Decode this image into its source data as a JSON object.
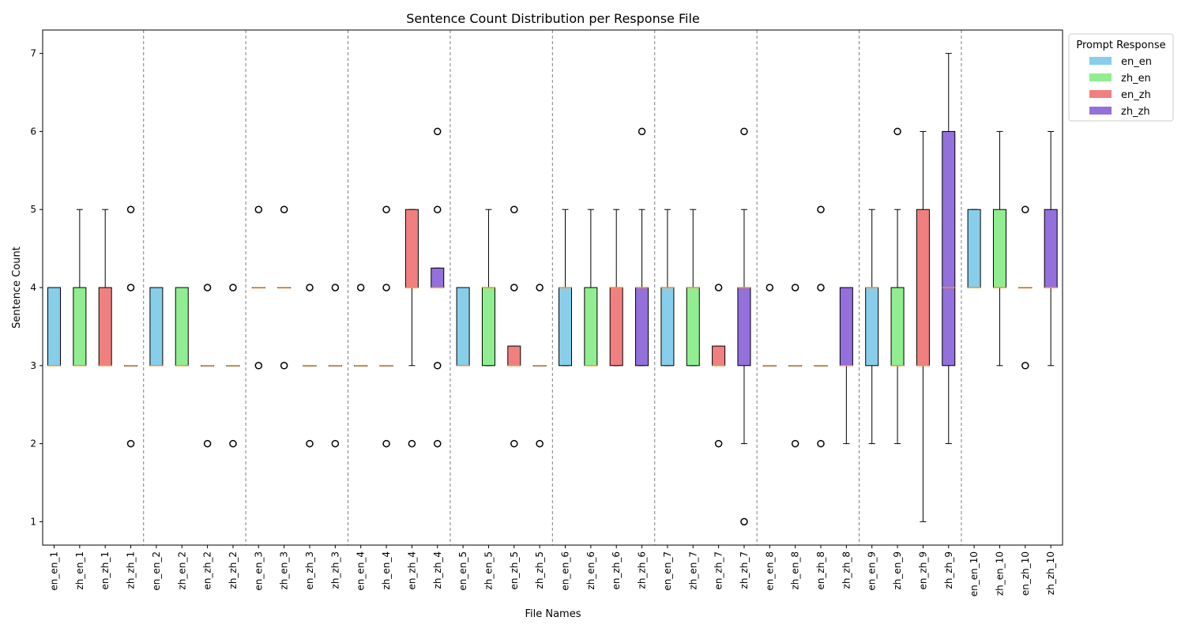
{
  "chart_data": {
    "type": "box",
    "title": "Sentence Count Distribution per Response File",
    "xlabel": "File Names",
    "ylabel": "Sentence Count",
    "ylim": [
      0.7,
      7.3
    ],
    "yticks": [
      1,
      2,
      3,
      4,
      5,
      6,
      7
    ],
    "grid": false,
    "legend": {
      "title": "Prompt Response",
      "placement": "outside-top-right",
      "entries": [
        {
          "label": "en_en",
          "color": "#87ceeb"
        },
        {
          "label": "zh_en",
          "color": "#90ee90"
        },
        {
          "label": "en_zh",
          "color": "#f08080"
        },
        {
          "label": "zh_zh",
          "color": "#9370db"
        }
      ]
    },
    "group_separators_after": [
      4,
      8,
      12,
      16,
      20,
      24,
      28,
      32,
      36
    ],
    "median_color": "#ff8c28",
    "boxes": [
      {
        "label": "en_en_1",
        "group": "en_en",
        "q1": 3,
        "median": 3,
        "q3": 4,
        "whisker_low": 3,
        "whisker_high": 4,
        "outliers": []
      },
      {
        "label": "zh_en_1",
        "group": "zh_en",
        "q1": 3,
        "median": 3,
        "q3": 4,
        "whisker_low": 3,
        "whisker_high": 5,
        "outliers": []
      },
      {
        "label": "en_zh_1",
        "group": "en_zh",
        "q1": 3,
        "median": 3,
        "q3": 4,
        "whisker_low": 3,
        "whisker_high": 5,
        "outliers": []
      },
      {
        "label": "zh_zh_1",
        "group": "zh_zh",
        "q1": 3,
        "median": 3,
        "q3": 3,
        "whisker_low": 3,
        "whisker_high": 3,
        "outliers": [
          2,
          4,
          5
        ]
      },
      {
        "label": "en_en_2",
        "group": "en_en",
        "q1": 3,
        "median": 3,
        "q3": 4,
        "whisker_low": 3,
        "whisker_high": 4,
        "outliers": []
      },
      {
        "label": "zh_en_2",
        "group": "zh_en",
        "q1": 3,
        "median": 3,
        "q3": 4,
        "whisker_low": 3,
        "whisker_high": 4,
        "outliers": []
      },
      {
        "label": "en_zh_2",
        "group": "en_zh",
        "q1": 3,
        "median": 3,
        "q3": 3,
        "whisker_low": 3,
        "whisker_high": 3,
        "outliers": [
          2,
          4
        ]
      },
      {
        "label": "zh_zh_2",
        "group": "zh_zh",
        "q1": 3,
        "median": 3,
        "q3": 3,
        "whisker_low": 3,
        "whisker_high": 3,
        "outliers": [
          2,
          4
        ]
      },
      {
        "label": "en_en_3",
        "group": "en_en",
        "q1": 4,
        "median": 4,
        "q3": 4,
        "whisker_low": 4,
        "whisker_high": 4,
        "outliers": [
          3,
          5
        ]
      },
      {
        "label": "zh_en_3",
        "group": "zh_en",
        "q1": 4,
        "median": 4,
        "q3": 4,
        "whisker_low": 4,
        "whisker_high": 4,
        "outliers": [
          3,
          5
        ]
      },
      {
        "label": "en_zh_3",
        "group": "en_zh",
        "q1": 3,
        "median": 3,
        "q3": 3,
        "whisker_low": 3,
        "whisker_high": 3,
        "outliers": [
          2,
          4
        ]
      },
      {
        "label": "zh_zh_3",
        "group": "zh_zh",
        "q1": 3,
        "median": 3,
        "q3": 3,
        "whisker_low": 3,
        "whisker_high": 3,
        "outliers": [
          2,
          4
        ]
      },
      {
        "label": "en_en_4",
        "group": "en_en",
        "q1": 3,
        "median": 3,
        "q3": 3,
        "whisker_low": 3,
        "whisker_high": 3,
        "outliers": [
          4
        ]
      },
      {
        "label": "zh_en_4",
        "group": "zh_en",
        "q1": 3,
        "median": 3,
        "q3": 3,
        "whisker_low": 3,
        "whisker_high": 3,
        "outliers": [
          2,
          4,
          5
        ]
      },
      {
        "label": "en_zh_4",
        "group": "en_zh",
        "q1": 4,
        "median": 4,
        "q3": 5,
        "whisker_low": 3,
        "whisker_high": 5,
        "outliers": [
          2
        ]
      },
      {
        "label": "zh_zh_4",
        "group": "zh_zh",
        "q1": 4,
        "median": 4,
        "q3": 4.25,
        "whisker_low": 4,
        "whisker_high": 4.25,
        "outliers": [
          2,
          3,
          5,
          6
        ]
      },
      {
        "label": "en_en_5",
        "group": "en_en",
        "q1": 3,
        "median": 3,
        "q3": 4,
        "whisker_low": 3,
        "whisker_high": 4,
        "outliers": []
      },
      {
        "label": "zh_en_5",
        "group": "zh_en",
        "q1": 3,
        "median": 4,
        "q3": 4,
        "whisker_low": 3,
        "whisker_high": 5,
        "outliers": []
      },
      {
        "label": "en_zh_5",
        "group": "en_zh",
        "q1": 3,
        "median": 3,
        "q3": 3.25,
        "whisker_low": 3,
        "whisker_high": 3.25,
        "outliers": [
          2,
          4,
          5
        ]
      },
      {
        "label": "zh_zh_5",
        "group": "zh_zh",
        "q1": 3,
        "median": 3,
        "q3": 3,
        "whisker_low": 3,
        "whisker_high": 3,
        "outliers": [
          2,
          4
        ]
      },
      {
        "label": "en_en_6",
        "group": "en_en",
        "q1": 3,
        "median": 4,
        "q3": 4,
        "whisker_low": 3,
        "whisker_high": 5,
        "outliers": []
      },
      {
        "label": "zh_en_6",
        "group": "zh_en",
        "q1": 3,
        "median": 3,
        "q3": 4,
        "whisker_low": 3,
        "whisker_high": 5,
        "outliers": []
      },
      {
        "label": "en_zh_6",
        "group": "en_zh",
        "q1": 3,
        "median": 4,
        "q3": 4,
        "whisker_low": 3,
        "whisker_high": 5,
        "outliers": []
      },
      {
        "label": "zh_zh_6",
        "group": "zh_zh",
        "q1": 3,
        "median": 4,
        "q3": 4,
        "whisker_low": 3,
        "whisker_high": 5,
        "outliers": [
          6
        ]
      },
      {
        "label": "en_en_7",
        "group": "en_en",
        "q1": 3,
        "median": 4,
        "q3": 4,
        "whisker_low": 3,
        "whisker_high": 5,
        "outliers": []
      },
      {
        "label": "zh_en_7",
        "group": "zh_en",
        "q1": 3,
        "median": 4,
        "q3": 4,
        "whisker_low": 3,
        "whisker_high": 5,
        "outliers": []
      },
      {
        "label": "en_zh_7",
        "group": "en_zh",
        "q1": 3,
        "median": 3,
        "q3": 3.25,
        "whisker_low": 3,
        "whisker_high": 3.25,
        "outliers": [
          2,
          4
        ]
      },
      {
        "label": "zh_zh_7",
        "group": "zh_zh",
        "q1": 3,
        "median": 4,
        "q3": 4,
        "whisker_low": 2,
        "whisker_high": 5,
        "outliers": [
          1,
          6
        ]
      },
      {
        "label": "en_en_8",
        "group": "en_en",
        "q1": 3,
        "median": 3,
        "q3": 3,
        "whisker_low": 3,
        "whisker_high": 3,
        "outliers": [
          4
        ]
      },
      {
        "label": "zh_en_8",
        "group": "zh_en",
        "q1": 3,
        "median": 3,
        "q3": 3,
        "whisker_low": 3,
        "whisker_high": 3,
        "outliers": [
          2,
          4
        ]
      },
      {
        "label": "en_zh_8",
        "group": "en_zh",
        "q1": 3,
        "median": 3,
        "q3": 3,
        "whisker_low": 3,
        "whisker_high": 3,
        "outliers": [
          2,
          4,
          5
        ]
      },
      {
        "label": "zh_zh_8",
        "group": "zh_zh",
        "q1": 3,
        "median": 3,
        "q3": 4,
        "whisker_low": 2,
        "whisker_high": 4,
        "outliers": []
      },
      {
        "label": "en_en_9",
        "group": "en_en",
        "q1": 3,
        "median": 4,
        "q3": 4,
        "whisker_low": 2,
        "whisker_high": 5,
        "outliers": []
      },
      {
        "label": "zh_en_9",
        "group": "zh_en",
        "q1": 3,
        "median": 3,
        "q3": 4,
        "whisker_low": 2,
        "whisker_high": 5,
        "outliers": [
          6
        ]
      },
      {
        "label": "en_zh_9",
        "group": "en_zh",
        "q1": 3,
        "median": 3,
        "q3": 5,
        "whisker_low": 1,
        "whisker_high": 6,
        "outliers": []
      },
      {
        "label": "zh_zh_9",
        "group": "zh_zh",
        "q1": 3,
        "median": 4,
        "q3": 6,
        "whisker_low": 2,
        "whisker_high": 7,
        "outliers": []
      },
      {
        "label": "en_en_10",
        "group": "en_en",
        "q1": 4,
        "median": 4,
        "q3": 5,
        "whisker_low": 4,
        "whisker_high": 5,
        "outliers": []
      },
      {
        "label": "zh_en_10",
        "group": "zh_en",
        "q1": 4,
        "median": 4,
        "q3": 5,
        "whisker_low": 3,
        "whisker_high": 6,
        "outliers": []
      },
      {
        "label": "en_zh_10",
        "group": "en_zh",
        "q1": 4,
        "median": 4,
        "q3": 4,
        "whisker_low": 4,
        "whisker_high": 4,
        "outliers": [
          3,
          5
        ]
      },
      {
        "label": "zh_zh_10",
        "group": "zh_zh",
        "q1": 4,
        "median": 4,
        "q3": 5,
        "whisker_low": 3,
        "whisker_high": 6,
        "outliers": []
      }
    ]
  }
}
